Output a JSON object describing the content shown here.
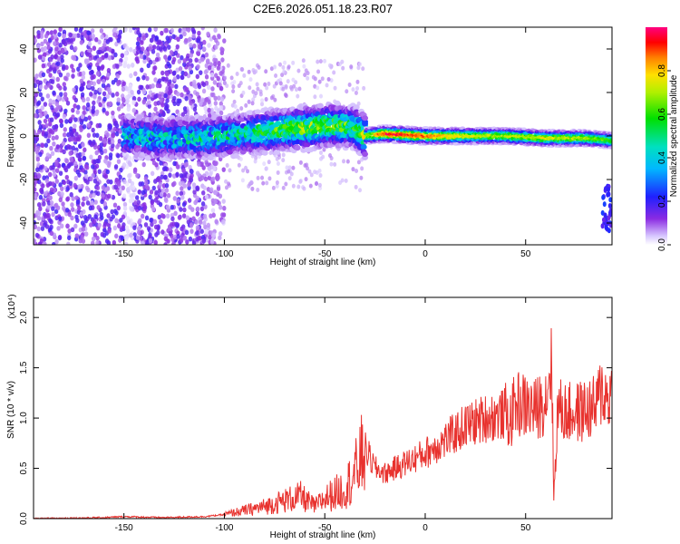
{
  "title": "C2E6.2026.051.18.23.R07",
  "chart_data": [
    {
      "type": "heatmap",
      "name": "spectrogram",
      "xlabel": "Height of straight line (km)",
      "ylabel": "Frequency (Hz)",
      "xlim": [
        -195,
        93
      ],
      "ylim": [
        -50,
        50
      ],
      "xticks": [
        -150,
        -100,
        -50,
        0,
        50
      ],
      "yticks": [
        -40,
        -20,
        0,
        20,
        40
      ],
      "colorbar": {
        "label": "Normalized spectral amplitude",
        "range": [
          0,
          1
        ],
        "ticks": [
          0.0,
          0.2,
          0.4,
          0.6,
          0.8
        ]
      },
      "ridge": {
        "description_points_x": [
          -150,
          -130,
          -110,
          -90,
          -70,
          -55,
          -45,
          -35,
          -30,
          -20,
          0,
          20,
          40,
          60,
          80,
          93
        ],
        "freq_hz": [
          0,
          -1,
          -1,
          1,
          3,
          4,
          5,
          4,
          0,
          1,
          0,
          0,
          0,
          -1,
          -1,
          -2
        ],
        "peak_amplitude": [
          0.35,
          0.35,
          0.38,
          0.42,
          0.55,
          0.6,
          0.55,
          0.5,
          0.65,
          0.95,
          0.9,
          0.75,
          0.7,
          0.75,
          0.7,
          0.6
        ]
      },
      "noise_region_x": [
        -195,
        -100
      ]
    },
    {
      "type": "line",
      "name": "snr",
      "xlabel": "Height of straight line (km)",
      "ylabel": "SNR (10 * v/v)",
      "scale_label": "(x10⁴)",
      "xlim": [
        -195,
        93
      ],
      "ylim": [
        0,
        2.2
      ],
      "xticks": [
        -150,
        -100,
        -50,
        0,
        50
      ],
      "yticks": [
        0.0,
        0.5,
        1.0,
        1.5,
        2.0
      ],
      "color": "#e8322e",
      "series": [
        {
          "name": "SNR",
          "x": [
            -195,
            -160,
            -150,
            -130,
            -110,
            -100,
            -90,
            -80,
            -70,
            -62,
            -55,
            -50,
            -45,
            -40,
            -35,
            -32,
            -30,
            -25,
            -20,
            -10,
            0,
            10,
            20,
            30,
            38,
            40,
            42,
            45,
            50,
            55,
            60,
            63,
            64,
            66,
            70,
            75,
            80,
            85,
            88,
            90,
            93
          ],
          "y": [
            0.0,
            0.01,
            0.02,
            0.01,
            0.02,
            0.04,
            0.08,
            0.12,
            0.18,
            0.22,
            0.12,
            0.2,
            0.25,
            0.3,
            0.45,
            0.6,
            0.7,
            0.5,
            0.45,
            0.55,
            0.65,
            0.78,
            0.92,
            1.0,
            1.03,
            1.05,
            0.95,
            1.15,
            1.12,
            1.08,
            1.2,
            1.6,
            0.2,
            1.1,
            1.05,
            1.05,
            1.08,
            1.1,
            1.3,
            1.2,
            1.25
          ]
        }
      ]
    }
  ]
}
